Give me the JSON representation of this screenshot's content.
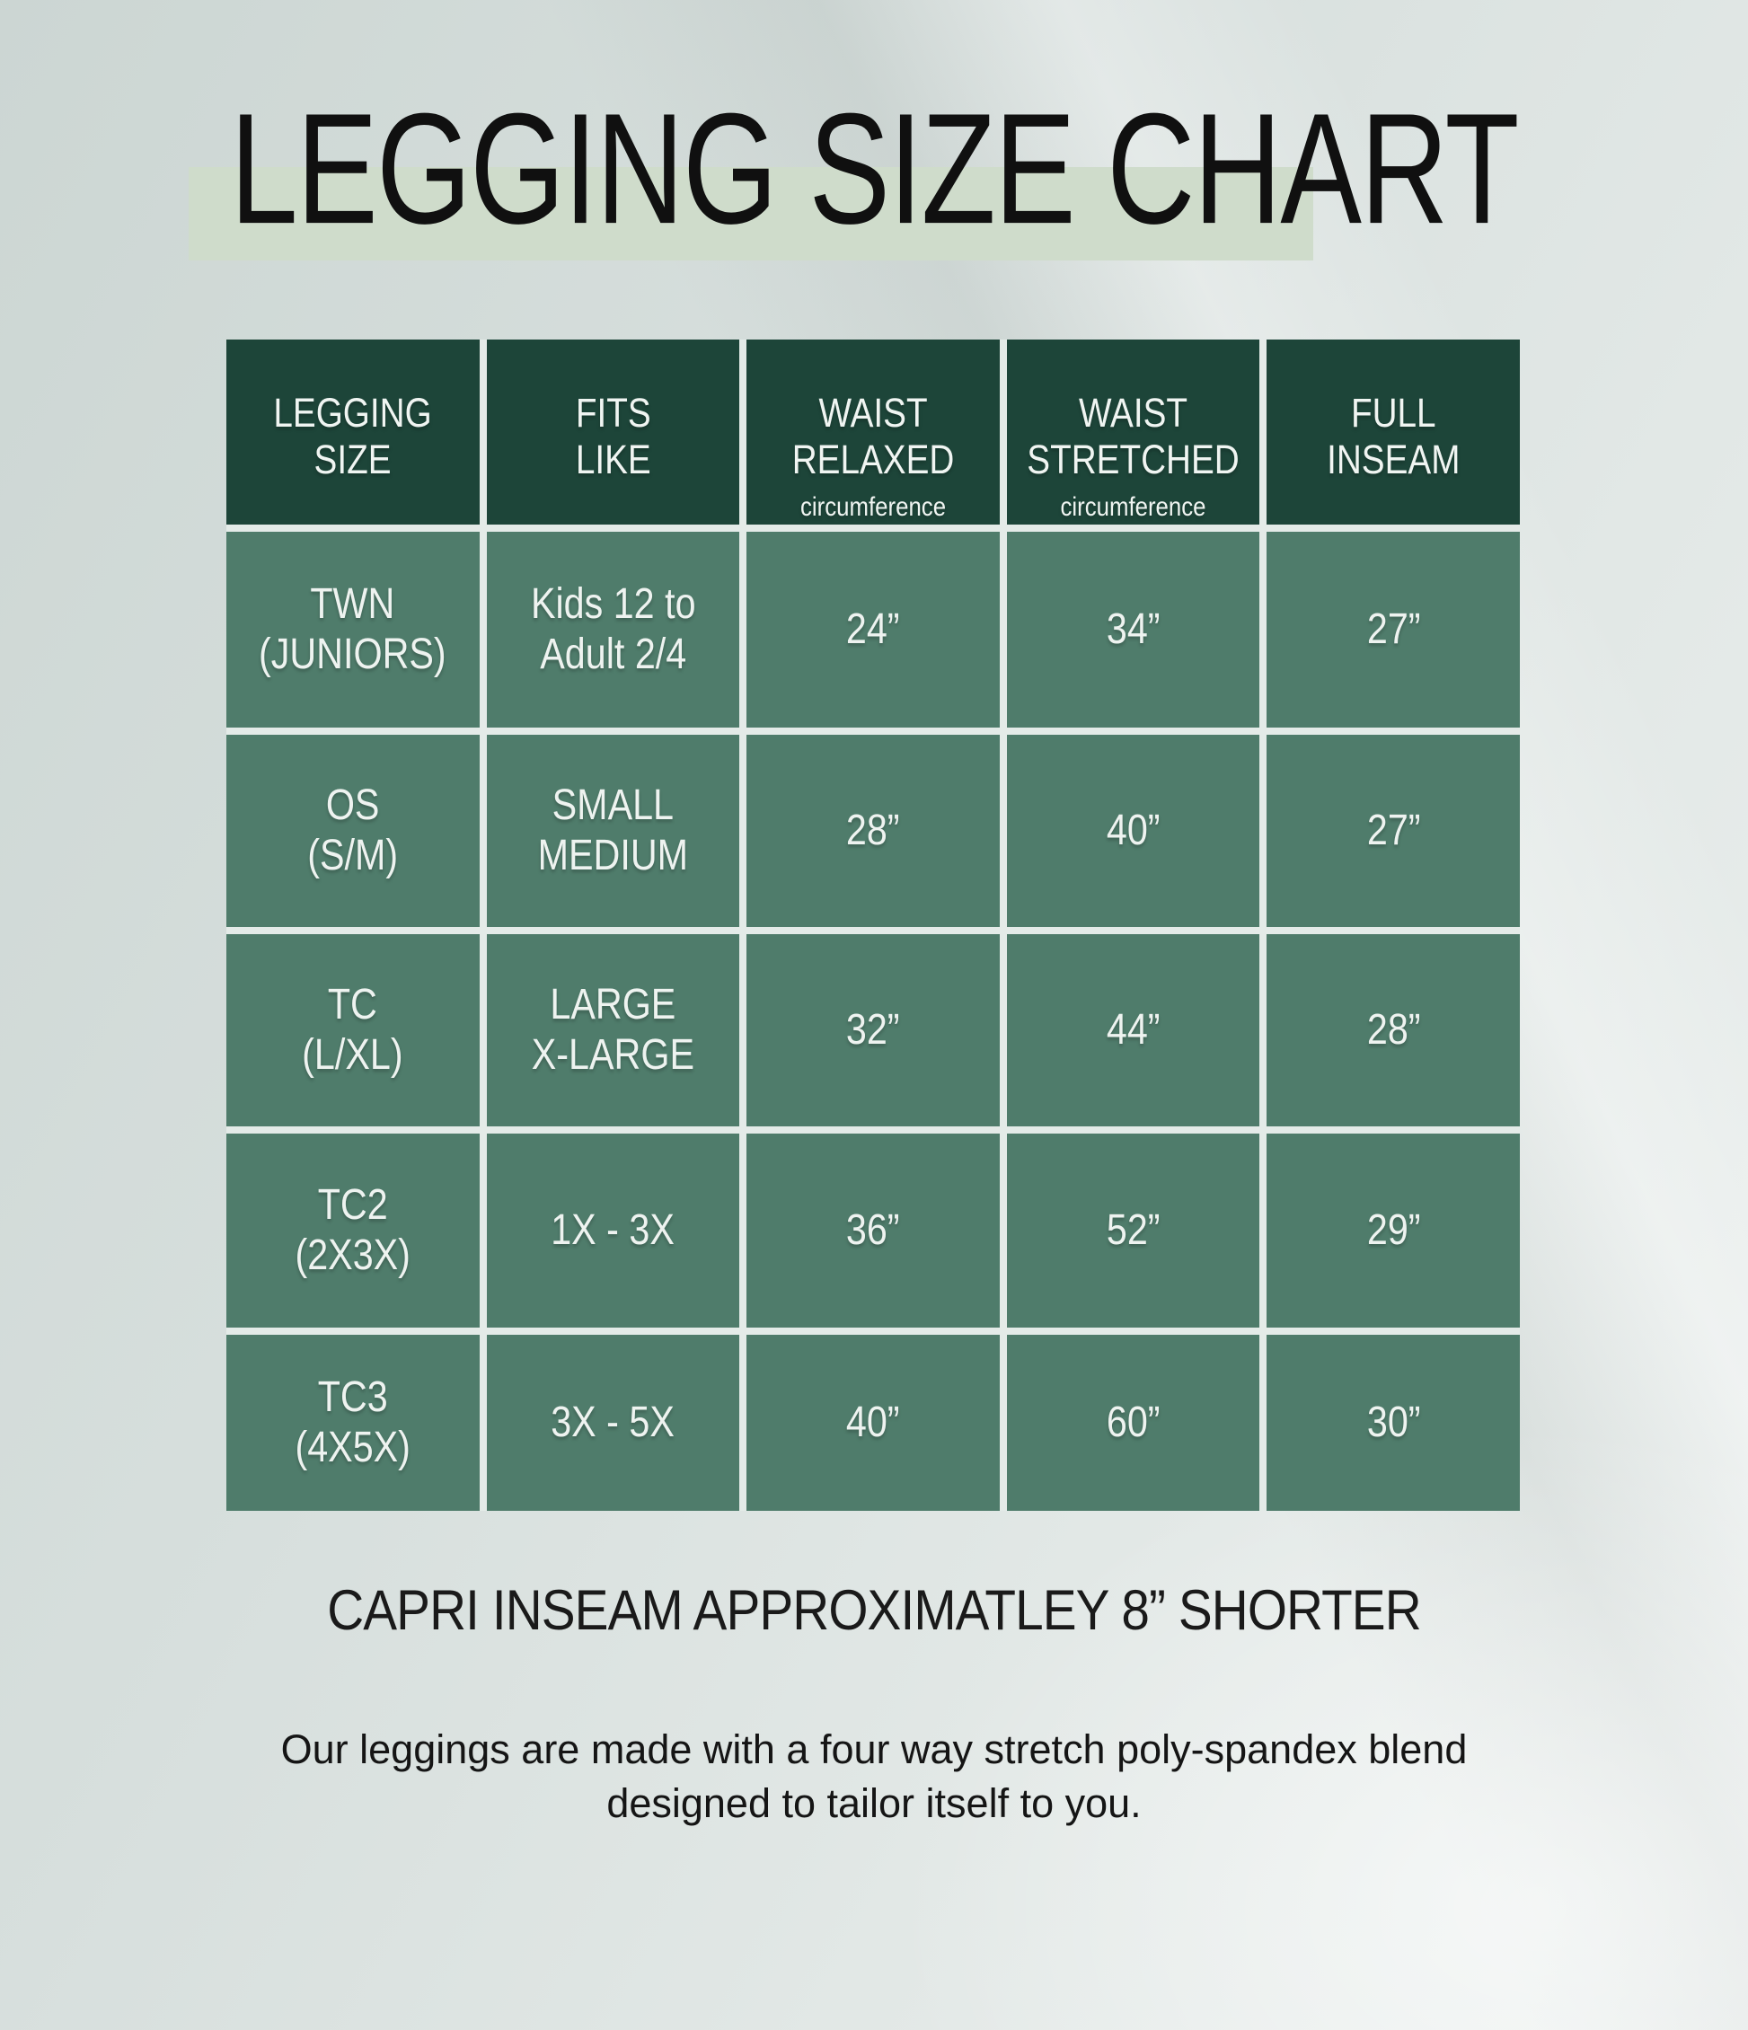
{
  "title": "LEGGING SIZE CHART",
  "table": {
    "headers": [
      {
        "line1": "LEGGING",
        "line2": "SIZE"
      },
      {
        "line1": "FITS",
        "line2": "LIKE"
      },
      {
        "line1": "WAIST",
        "line2": "RELAXED",
        "sub": "circumference"
      },
      {
        "line1": "WAIST",
        "line2": "STRETCHED",
        "sub": "circumference"
      },
      {
        "line1": "FULL",
        "line2": "INSEAM"
      }
    ],
    "rows": [
      {
        "size1": "TWN",
        "size2": "(JUNIORS)",
        "fits1": "Kids 12 to",
        "fits2": "Adult 2/4",
        "waist_relaxed": "24”",
        "waist_stretched": "34”",
        "full_inseam": "27”"
      },
      {
        "size1": "OS",
        "size2": "(S/M)",
        "fits1": "SMALL",
        "fits2": "MEDIUM",
        "waist_relaxed": "28”",
        "waist_stretched": "40”",
        "full_inseam": "27”"
      },
      {
        "size1": "TC",
        "size2": "(L/XL)",
        "fits1": "LARGE",
        "fits2": "X-LARGE",
        "waist_relaxed": "32”",
        "waist_stretched": "44”",
        "full_inseam": "28”"
      },
      {
        "size1": "TC2",
        "size2": "(2X3X)",
        "fits1": "1X - 3X",
        "fits2": "",
        "waist_relaxed": "36”",
        "waist_stretched": "52”",
        "full_inseam": "29”"
      },
      {
        "size1": "TC3",
        "size2": "(4X5X)",
        "fits1": "3X - 5X",
        "fits2": "",
        "waist_relaxed": "40”",
        "waist_stretched": "60”",
        "full_inseam": "30”"
      }
    ]
  },
  "footer": {
    "capri_note": "CAPRI INSEAM APPROXIMATLEY 8” SHORTER",
    "description_line1": "Our leggings are made with a four way stretch poly-spandex blend",
    "description_line2": "designed to tailor itself to you."
  },
  "colors": {
    "header_green": "#1d4539",
    "cell_green": "#4f7c6b",
    "gridline": "#e4ebe8",
    "title_highlight": "#cfdccb",
    "background_top": "#ccd6d3",
    "background_bottom": "#edf1f0",
    "title_text": "#101010",
    "cell_text": "#eef3f0"
  },
  "chart_data": {
    "type": "table",
    "title": "LEGGING SIZE CHART",
    "columns": [
      "LEGGING SIZE",
      "FITS LIKE",
      "WAIST RELAXED circumference",
      "WAIST STRETCHED circumference",
      "FULL INSEAM"
    ],
    "rows": [
      [
        "TWN (JUNIORS)",
        "Kids 12 to Adult 2/4",
        "24”",
        "34”",
        "27”"
      ],
      [
        "OS (S/M)",
        "SMALL MEDIUM",
        "28”",
        "40”",
        "27”"
      ],
      [
        "TC (L/XL)",
        "LARGE X-LARGE",
        "32”",
        "44”",
        "28”"
      ],
      [
        "TC2 (2X3X)",
        "1X - 3X",
        "36”",
        "52”",
        "29”"
      ],
      [
        "TC3 (4X5X)",
        "3X - 5X",
        "40”",
        "60”",
        "30”"
      ]
    ],
    "notes": [
      "CAPRI INSEAM APPROXIMATLEY 8” SHORTER",
      "Our leggings are made with a four way stretch poly-spandex blend designed to tailor itself to you."
    ]
  }
}
